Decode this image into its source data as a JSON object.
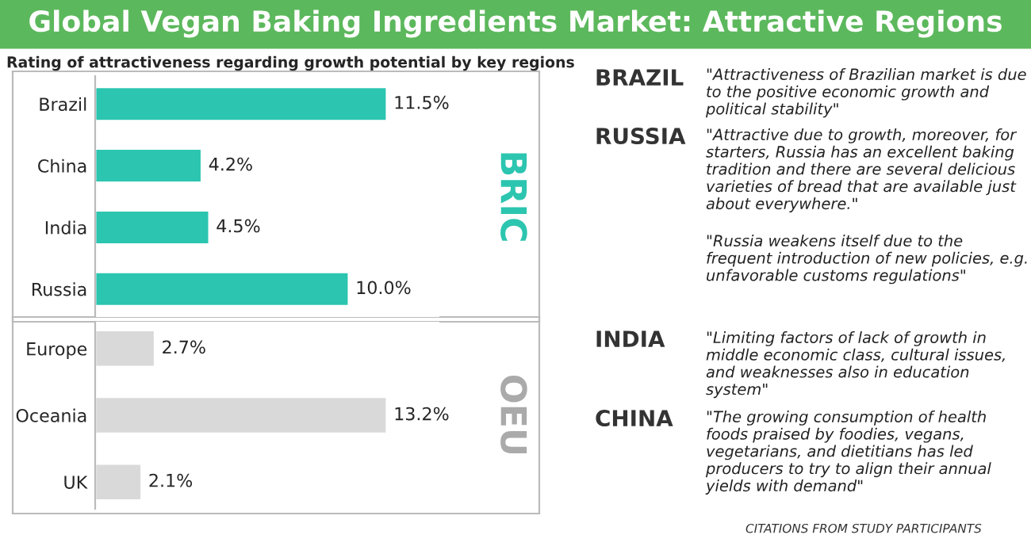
{
  "chart_data": [
    {
      "type": "bar",
      "orientation": "horizontal",
      "title": "Global Vegan Baking Ingredients Market: Attractive Regions",
      "subtitle": "Rating of attractiveness regarding growth potential by key regions",
      "categories": [
        "Brazil",
        "China",
        "India",
        "Russia"
      ],
      "values": [
        11.5,
        4.2,
        4.5,
        10.0
      ],
      "value_labels": [
        "11.5%",
        "4.2%",
        "4.5%",
        "10.0%"
      ],
      "color": "#2cc5b0",
      "annotations": [
        "BRIC"
      ]
    },
    {
      "type": "bar",
      "orientation": "horizontal",
      "categories": [
        "Europe",
        "Oceania",
        "UK"
      ],
      "values": [
        2.7,
        13.2,
        2.1
      ],
      "value_labels": [
        "2.7%",
        "13.2%",
        "2.1%"
      ],
      "color": "#d9d9d9",
      "annotations": [
        "OEU"
      ]
    },
    {
      "type": "other",
      "annotations": [
        "BRAZIL",
        "\"Attractiveness of Brazilian market is due to the positive economic growth and political stability\"",
        "RUSSIA",
        "\"Attractive due to growth, moreover, for starters, Russia has an excellent baking tradition and there are several delicious varieties of bread that are available just about everywhere.\"",
        "\"Russia weakens itself due to the frequent introduction of new policies, e.g. unfavorable customs regulations\"",
        "INDIA",
        "\"Limiting factors of lack of growth in middle economic class, cultural issues, and weaknesses also in education system\"",
        "CHINA",
        "\"The growing consumption of health foods praised by foodies, vegans, vegetarians, and dietitians has led producers to try to align their annual yields with demand\"",
        "CITATIONS FROM STUDY PARTICIPANTS"
      ]
    }
  ]
}
